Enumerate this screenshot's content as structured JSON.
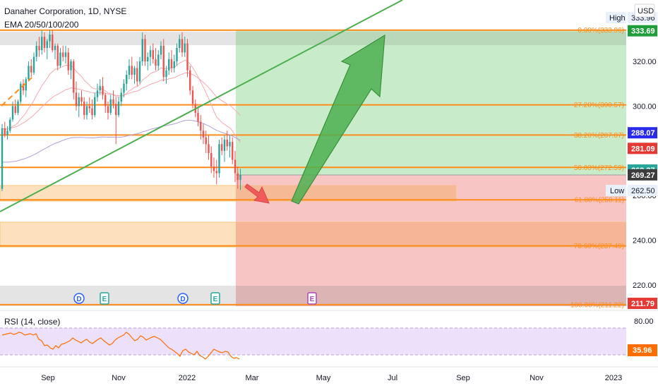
{
  "header": {
    "symbol_line": "Danaher Corporation, 1D, NYSE",
    "indicator": "EMA 20/50/100/200",
    "currency": "USD"
  },
  "colors": {
    "orange": "#ff8c1a",
    "green_zone": "#c8ecc9",
    "red_zone": "#f8c5c5",
    "orange_zone": "#fde1bf",
    "trend_green": "#4caf50",
    "arrow_green": "#4caf50",
    "arrow_red": "#f05a5a",
    "candle_up": "#26a69a",
    "candle_down": "#ef5350",
    "rsi_line": "#ff6d00",
    "rsi_band": "#ede0fa",
    "ema_red": "#f7a8b0",
    "ema_purple": "#b39ddb"
  },
  "chart_data": {
    "type": "candlestick",
    "title": "Danaher Corporation, 1D, NYSE",
    "indicator": "EMA 20/50/100/200",
    "x_ticks": [
      "Sep",
      "Nov",
      "2022",
      "Mar",
      "May",
      "Jul",
      "Sep",
      "Nov",
      "2023"
    ],
    "y_ticks": [
      320.0,
      300.0,
      280.0,
      260.0,
      240.0,
      220.0
    ],
    "ylim": [
      206,
      345
    ],
    "fib_levels": [
      {
        "label": "0.00%(333.96)",
        "value": 333.96
      },
      {
        "label": "27.20%(300.57)",
        "value": 300.57
      },
      {
        "label": "38.20%(287.07)",
        "value": 287.07
      },
      {
        "label": "50.00%(272.59)",
        "value": 272.59
      },
      {
        "label": "61.80%(258.11)",
        "value": 258.11
      },
      {
        "label": "78.60%(237.49)",
        "value": 237.49
      },
      {
        "label": "100.00%(211.22)",
        "value": 211.22
      }
    ],
    "price_tags": [
      {
        "label": "333.69",
        "value": 333.69,
        "color": "#1e9e3a"
      },
      {
        "label": "288.07",
        "value": 288.07,
        "color": "#2a2aeb"
      },
      {
        "label": "281.09",
        "value": 281.09,
        "color": "#e53935"
      },
      {
        "label": "269.27",
        "value": 271.4,
        "color": "#26a69a"
      },
      {
        "label": "269.27",
        "value": 269.27,
        "color": "#3c3c3c"
      },
      {
        "label": "211.79",
        "value": 211.79,
        "color": "#e53935"
      }
    ],
    "high": {
      "label": "High",
      "value": "333.96"
    },
    "low": {
      "label": "Low",
      "value": "262.50"
    },
    "position": {
      "entry": 269.27,
      "target": 333.96,
      "stop": 211.22
    },
    "events": [
      "D",
      "E",
      "D",
      "E",
      "E"
    ],
    "rsi": {
      "label": "RSI (14, close)",
      "ticks": [
        80.0
      ],
      "last": "35.96",
      "values": [
        70,
        71,
        72,
        73,
        71,
        72,
        74,
        73,
        70,
        71,
        72,
        70,
        72,
        64,
        62,
        55,
        56,
        52,
        50,
        55,
        52,
        57,
        58,
        60,
        62,
        66,
        63,
        61,
        59,
        62,
        64,
        60,
        58,
        61,
        64,
        66,
        62,
        59,
        56,
        58,
        63,
        66,
        68,
        70,
        74,
        71,
        66,
        62,
        64,
        69,
        67,
        63,
        65,
        67,
        68,
        66,
        64,
        60,
        56,
        52,
        50,
        47,
        44,
        40,
        48,
        50,
        46,
        44,
        42,
        47,
        41,
        39,
        36,
        40,
        45,
        50,
        48,
        46,
        45,
        47,
        46,
        40,
        37,
        38,
        35.96
      ]
    },
    "candles": [
      [
        263,
        292,
        262,
        290
      ],
      [
        290,
        293,
        286,
        287
      ],
      [
        287,
        291,
        285,
        289
      ],
      [
        289,
        295,
        288,
        294
      ],
      [
        294,
        302,
        293,
        300
      ],
      [
        300,
        303,
        296,
        297
      ],
      [
        297,
        303,
        296,
        302
      ],
      [
        302,
        311,
        301,
        310
      ],
      [
        310,
        312,
        305,
        307
      ],
      [
        307,
        313,
        304,
        312
      ],
      [
        312,
        320,
        311,
        318
      ],
      [
        318,
        321,
        313,
        315
      ],
      [
        315,
        324,
        314,
        322
      ],
      [
        322,
        329,
        320,
        327
      ],
      [
        327,
        331,
        322,
        325
      ],
      [
        325,
        334,
        323,
        331
      ],
      [
        331,
        333,
        324,
        326
      ],
      [
        326,
        330,
        321,
        329
      ],
      [
        329,
        334,
        326,
        332
      ],
      [
        332,
        334,
        324,
        325
      ],
      [
        325,
        328,
        321,
        327
      ],
      [
        327,
        328,
        316,
        318
      ],
      [
        318,
        326,
        317,
        324
      ],
      [
        324,
        327,
        320,
        322
      ],
      [
        322,
        327,
        319,
        324
      ],
      [
        324,
        326,
        314,
        316
      ],
      [
        316,
        321,
        312,
        320
      ],
      [
        320,
        321,
        303,
        306
      ],
      [
        306,
        311,
        298,
        300
      ],
      [
        300,
        306,
        295,
        304
      ],
      [
        304,
        307,
        300,
        302
      ],
      [
        302,
        304,
        294,
        296
      ],
      [
        296,
        302,
        294,
        300
      ],
      [
        300,
        304,
        297,
        299
      ],
      [
        299,
        303,
        294,
        296
      ],
      [
        296,
        306,
        295,
        304
      ],
      [
        304,
        310,
        302,
        307
      ],
      [
        307,
        312,
        305,
        309
      ],
      [
        309,
        313,
        303,
        305
      ],
      [
        305,
        306,
        297,
        300
      ],
      [
        300,
        302,
        294,
        297
      ],
      [
        297,
        305,
        296,
        303
      ],
      [
        303,
        307,
        299,
        301
      ],
      [
        301,
        304,
        283,
        296
      ],
      [
        296,
        304,
        295,
        302
      ],
      [
        302,
        308,
        300,
        306
      ],
      [
        306,
        312,
        304,
        310
      ],
      [
        310,
        316,
        307,
        314
      ],
      [
        314,
        321,
        312,
        318
      ],
      [
        318,
        322,
        312,
        314
      ],
      [
        314,
        318,
        310,
        317
      ],
      [
        317,
        320,
        309,
        311
      ],
      [
        311,
        322,
        310,
        320
      ],
      [
        320,
        333,
        318,
        330
      ],
      [
        330,
        332,
        318,
        320
      ],
      [
        320,
        324,
        316,
        322
      ],
      [
        322,
        327,
        318,
        325
      ],
      [
        325,
        328,
        319,
        321
      ],
      [
        321,
        326,
        316,
        318
      ],
      [
        318,
        325,
        316,
        323
      ],
      [
        323,
        329,
        321,
        327
      ],
      [
        327,
        330,
        311,
        313
      ],
      [
        313,
        318,
        310,
        316
      ],
      [
        316,
        324,
        314,
        321
      ],
      [
        321,
        325,
        315,
        317
      ],
      [
        317,
        323,
        315,
        320
      ],
      [
        320,
        328,
        318,
        326
      ],
      [
        326,
        332,
        324,
        330
      ],
      [
        330,
        333,
        322,
        324
      ],
      [
        324,
        331,
        322,
        328
      ],
      [
        328,
        330,
        313,
        316
      ],
      [
        316,
        318,
        305,
        307
      ],
      [
        307,
        309,
        299,
        301
      ],
      [
        301,
        303,
        295,
        297
      ],
      [
        297,
        300,
        291,
        293
      ],
      [
        293,
        296,
        285,
        289
      ],
      [
        289,
        292,
        283,
        286
      ],
      [
        286,
        289,
        279,
        283
      ],
      [
        283,
        287,
        276,
        279
      ],
      [
        279,
        282,
        270,
        273
      ],
      [
        273,
        277,
        268,
        271
      ],
      [
        271,
        276,
        265,
        270
      ],
      [
        270,
        285,
        268,
        283
      ],
      [
        283,
        286,
        278,
        280
      ],
      [
        280,
        287,
        275,
        285
      ],
      [
        285,
        289,
        280,
        282
      ],
      [
        282,
        287,
        277,
        284
      ],
      [
        284,
        286,
        274,
        276
      ],
      [
        276,
        280,
        266,
        270
      ],
      [
        270,
        273,
        263,
        267
      ],
      [
        267,
        272,
        262.5,
        269.27
      ]
    ]
  }
}
